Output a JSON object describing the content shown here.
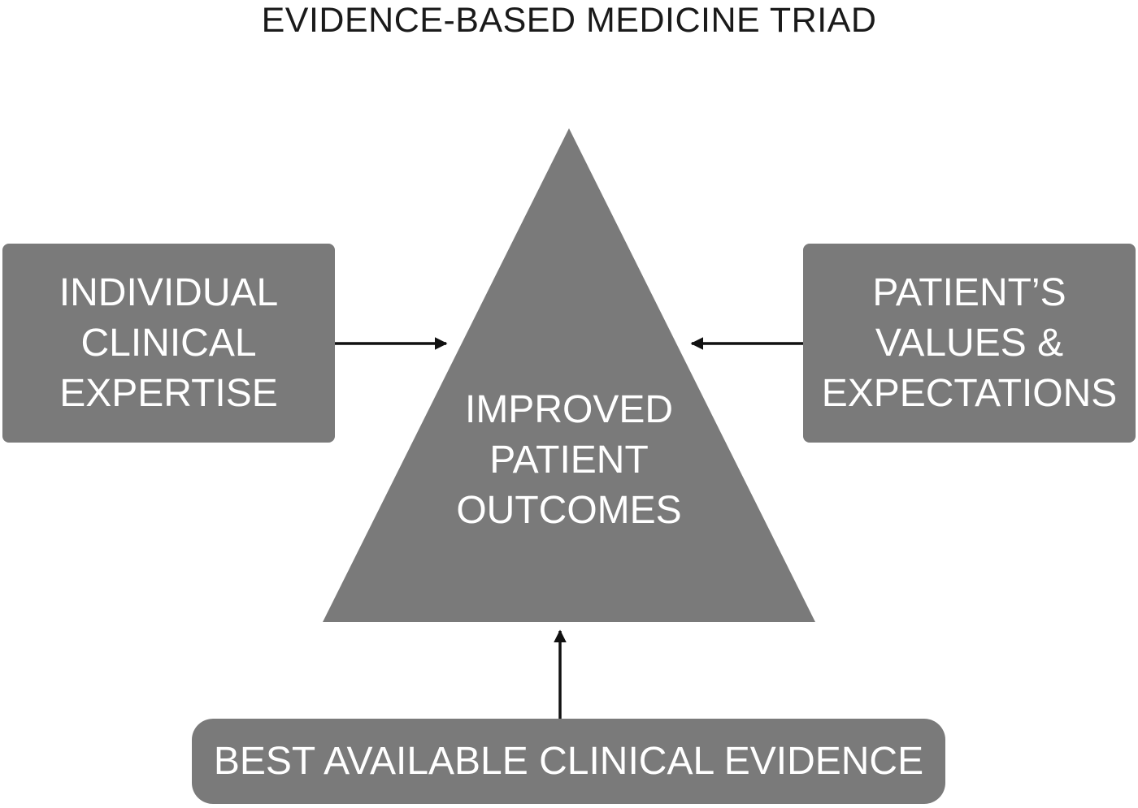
{
  "title": "EVIDENCE-BASED MEDICINE TRIAD",
  "colors": {
    "shape_fill": "#7a7a7a",
    "text_on_shape": "#ffffff",
    "arrow": "#111111",
    "title_text": "#1a1a1a",
    "background": "#ffffff"
  },
  "center": {
    "shape": "triangle",
    "lines": [
      "IMPROVED",
      "PATIENT",
      "OUTCOMES"
    ]
  },
  "inputs": {
    "left": {
      "lines": [
        "INDIVIDUAL",
        "CLINICAL",
        "EXPERTISE"
      ]
    },
    "right": {
      "lines": [
        "PATIENT’S",
        "VALUES &",
        "EXPECTATIONS"
      ]
    },
    "bottom": {
      "label": "BEST AVAILABLE CLINICAL EVIDENCE"
    }
  }
}
